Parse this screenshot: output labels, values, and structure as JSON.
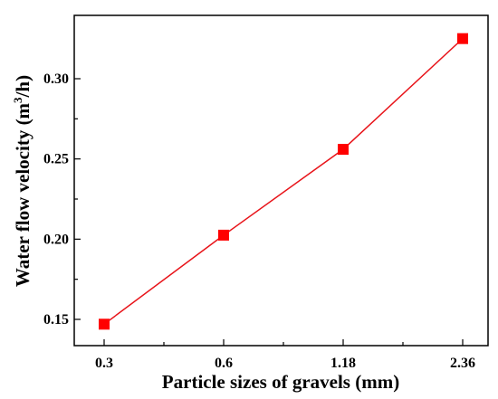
{
  "chart_data": {
    "type": "line",
    "categories": [
      "0.3",
      "0.6",
      "1.18",
      "2.36"
    ],
    "values": [
      0.147,
      0.2025,
      0.256,
      0.325
    ],
    "xlabel": "Particle sizes of gravels (mm)",
    "ylabel_main": "Water flow velocity (m",
    "ylabel_sup": "3",
    "ylabel_end": "/h)",
    "ylim": [
      0.14,
      0.33
    ],
    "yticks": [
      0.15,
      0.2,
      0.25,
      0.3
    ],
    "ytick_labels": [
      "0.15",
      "0.20",
      "0.25",
      "0.30"
    ],
    "grid": false,
    "line_color": "#e8141a",
    "marker_color": "#ff0000",
    "marker": "square"
  }
}
